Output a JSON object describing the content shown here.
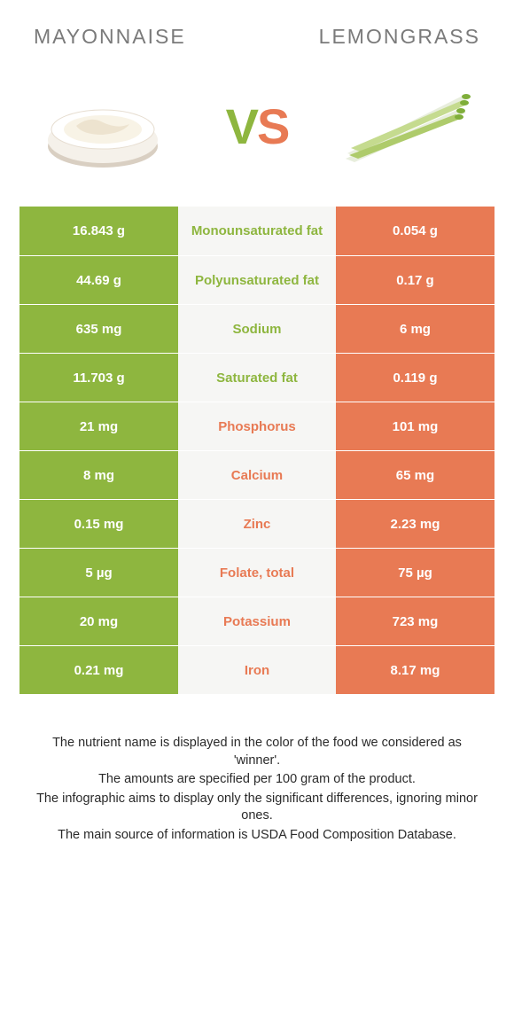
{
  "header": {
    "left": "MAYONNAISE",
    "right": "LEMONGRASS"
  },
  "vs": {
    "v": "V",
    "s": "S"
  },
  "colors": {
    "left_bg": "#8eb63f",
    "right_bg": "#e87a54",
    "mid_bg": "#f6f6f4",
    "left_text": "#8eb63f",
    "right_text": "#e87a54",
    "cell_text": "#ffffff"
  },
  "rows": [
    {
      "left": "16.843 g",
      "label": "Monounsaturated fat",
      "right": "0.054 g",
      "winner": "left"
    },
    {
      "left": "44.69 g",
      "label": "Polyunsaturated fat",
      "right": "0.17 g",
      "winner": "left"
    },
    {
      "left": "635 mg",
      "label": "Sodium",
      "right": "6 mg",
      "winner": "left"
    },
    {
      "left": "11.703 g",
      "label": "Saturated fat",
      "right": "0.119 g",
      "winner": "left"
    },
    {
      "left": "21 mg",
      "label": "Phosphorus",
      "right": "101 mg",
      "winner": "right"
    },
    {
      "left": "8 mg",
      "label": "Calcium",
      "right": "65 mg",
      "winner": "right"
    },
    {
      "left": "0.15 mg",
      "label": "Zinc",
      "right": "2.23 mg",
      "winner": "right"
    },
    {
      "left": "5 µg",
      "label": "Folate, total",
      "right": "75 µg",
      "winner": "right"
    },
    {
      "left": "20 mg",
      "label": "Potassium",
      "right": "723 mg",
      "winner": "right"
    },
    {
      "left": "0.21 mg",
      "label": "Iron",
      "right": "8.17 mg",
      "winner": "right"
    }
  ],
  "footer": [
    "The nutrient name is displayed in the color of the food we considered as 'winner'.",
    "The amounts are specified per 100 gram of the product.",
    "The infographic aims to display only the significant differences, ignoring minor ones.",
    "The main source of information is USDA Food Composition Database."
  ]
}
